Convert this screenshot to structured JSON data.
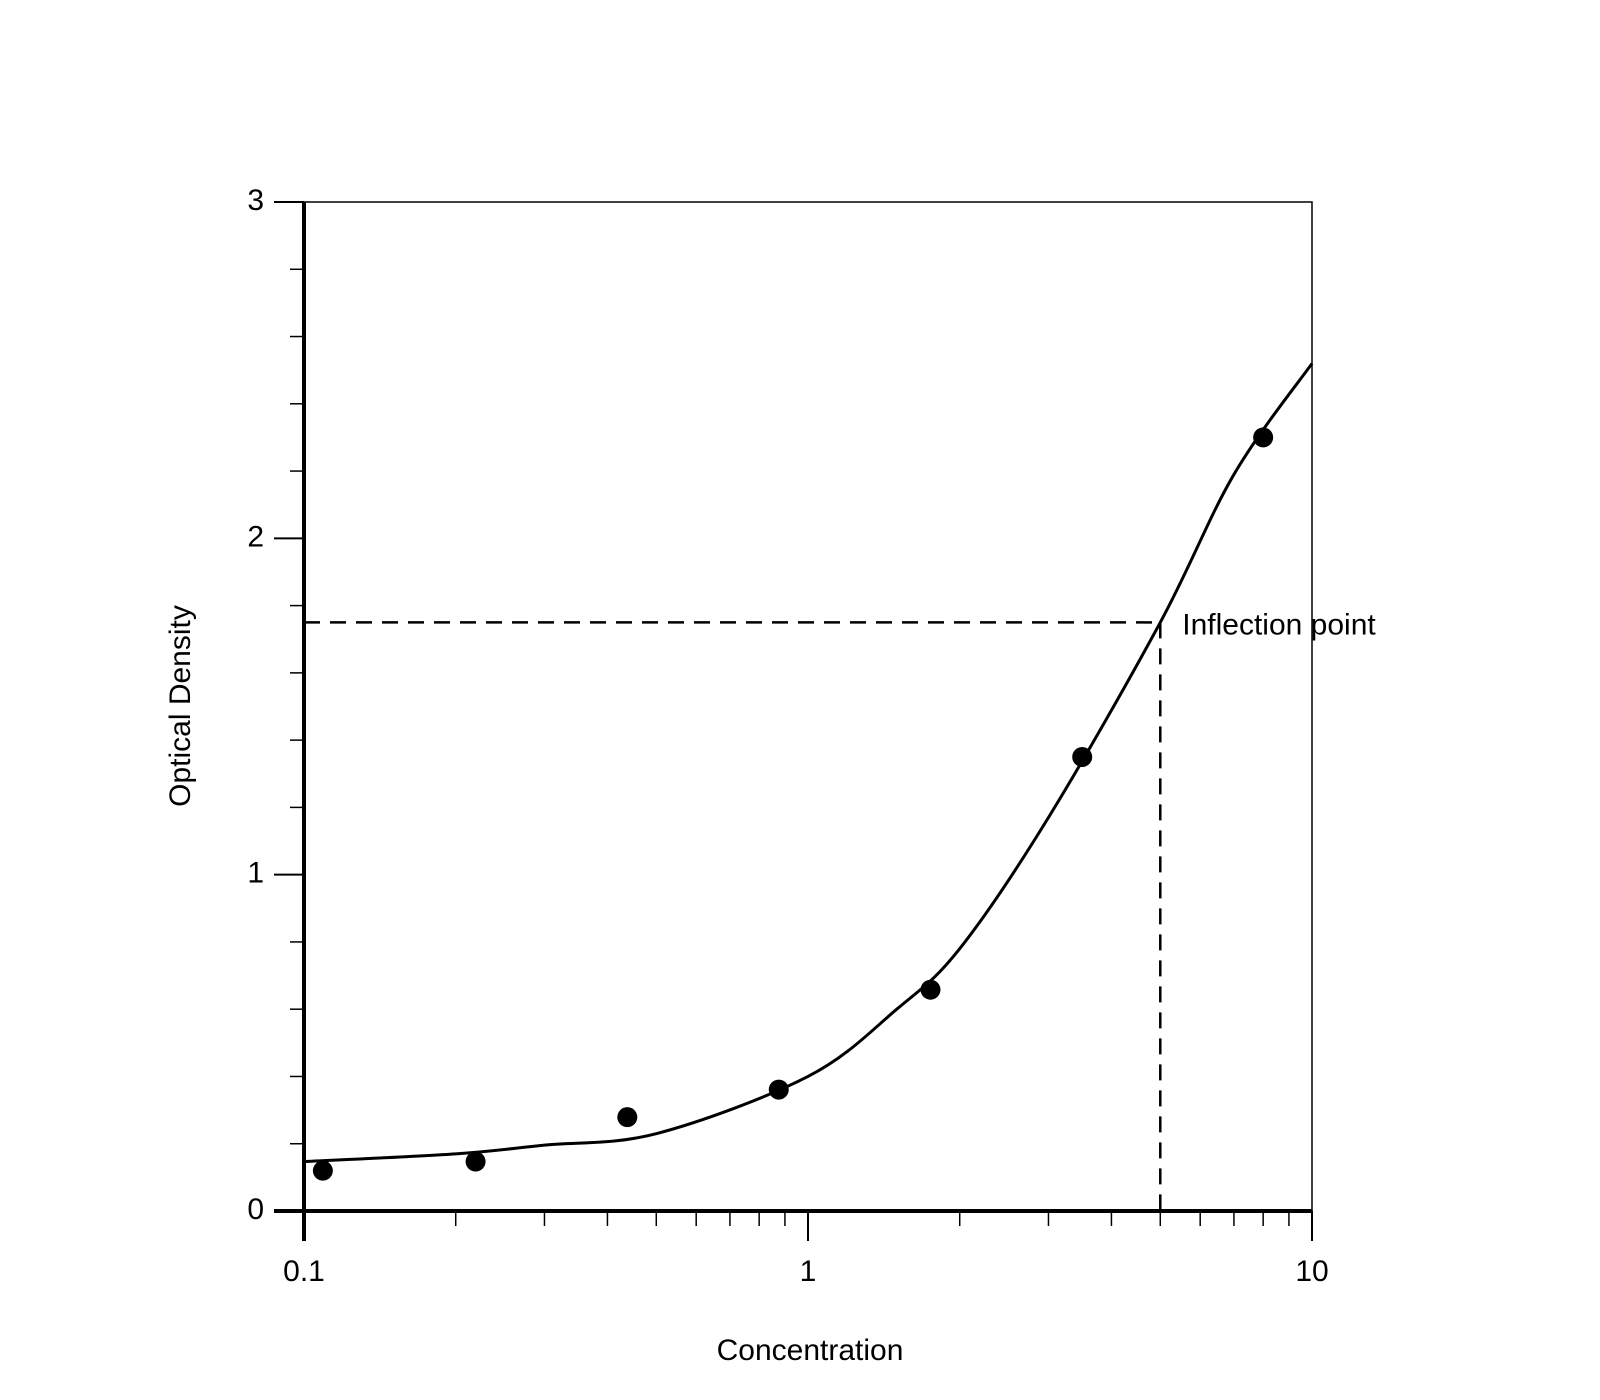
{
  "chart_data": {
    "type": "scatter",
    "x_label": "Concentration",
    "y_label": "Optical Density",
    "x": [
      0.109,
      0.219,
      0.438,
      0.875,
      1.75,
      3.5,
      8
    ],
    "values": [
      0.12,
      0.147,
      0.279,
      0.361,
      0.658,
      1.35,
      2.3
    ],
    "color": "#000000",
    "fit": {
      "x": [
        0.1,
        0.2,
        0.3,
        0.5,
        1,
        1.5,
        2,
        3,
        5,
        7,
        10
      ],
      "values": [
        0.147,
        0.17,
        0.196,
        0.23,
        0.4,
        0.6,
        0.78,
        1.17,
        1.75,
        2.19,
        2.52
      ],
      "color": "#000000"
    },
    "annotation": {
      "text": "Inflection point",
      "x": 5,
      "y": 1.75
    },
    "xscale": "log",
    "xlim": [
      0.1,
      10
    ],
    "xticks": [
      0.1,
      1,
      10
    ],
    "x_minor_ticks": [
      0.2,
      0.3,
      0.4,
      0.5,
      0.6,
      0.7,
      0.8,
      0.9,
      2,
      3,
      4,
      5,
      6,
      7,
      8,
      9
    ],
    "ylim": [
      0,
      3
    ],
    "yticks": [
      0,
      1,
      2,
      3
    ],
    "y_minor_ticks": [
      0.2,
      0.4,
      0.6,
      0.8,
      1.2,
      1.4,
      1.6,
      1.8,
      2.2,
      2.4,
      2.6,
      2.8
    ],
    "grid": false
  }
}
